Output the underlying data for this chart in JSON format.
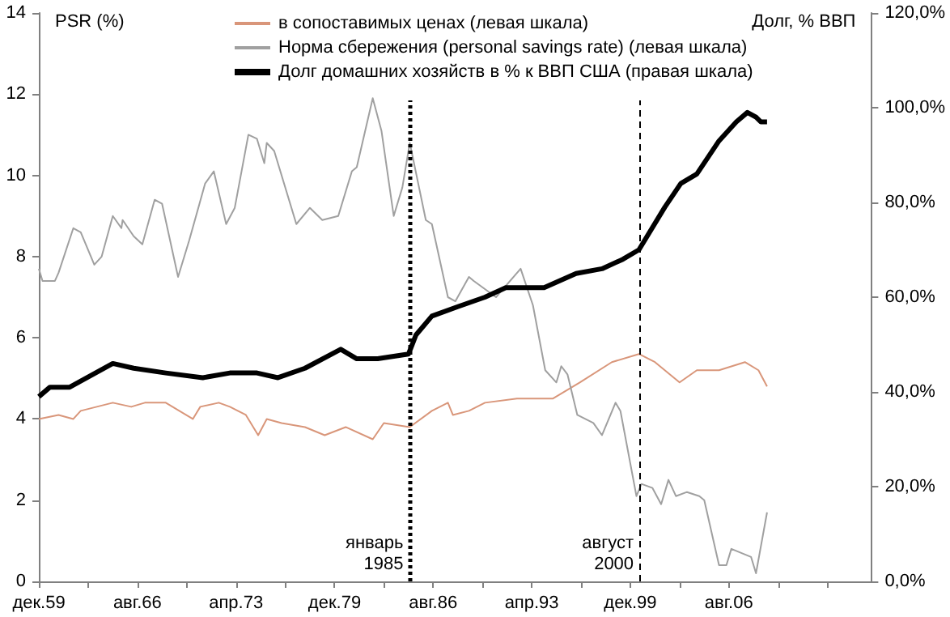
{
  "chart_data": {
    "type": "line",
    "ylabel": "PSR (%)",
    "y2label": "Долг, % ВВП",
    "xlim": [
      "1959-12",
      "2016-04"
    ],
    "xticks": [
      {
        "value": "1959-12",
        "label": "дек.59"
      },
      {
        "value": "1963-04",
        "label": null
      },
      {
        "value": "1966-08",
        "label": "авг.66"
      },
      {
        "value": "1969-12",
        "label": null
      },
      {
        "value": "1973-04",
        "label": "апр.73"
      },
      {
        "value": "1976-08",
        "label": null
      },
      {
        "value": "1979-12",
        "label": "дек.79"
      },
      {
        "value": "1983-04",
        "label": null
      },
      {
        "value": "1986-08",
        "label": "авг.86"
      },
      {
        "value": "1989-12",
        "label": null
      },
      {
        "value": "1993-04",
        "label": "апр.93"
      },
      {
        "value": "1996-08",
        "label": null
      },
      {
        "value": "1999-12",
        "label": "дек.99"
      },
      {
        "value": "2003-04",
        "label": null
      },
      {
        "value": "2006-08",
        "label": "авг.06"
      },
      {
        "value": "2009-12",
        "label": null
      },
      {
        "value": "2013-04",
        "label": null
      }
    ],
    "ylim": [
      0,
      14
    ],
    "yticks": [
      0,
      2,
      4,
      6,
      8,
      10,
      12,
      14
    ],
    "y2lim": [
      0,
      120
    ],
    "y2ticks": [
      {
        "value": 0,
        "label": "0,0%"
      },
      {
        "value": 20,
        "label": "20,0%"
      },
      {
        "value": 40,
        "label": "40,0%"
      },
      {
        "value": 60,
        "label": "60,0%"
      },
      {
        "value": 80,
        "label": "80,0%"
      },
      {
        "value": 100,
        "label": "100,0%"
      },
      {
        "value": 120,
        "label": "120,0%"
      }
    ],
    "grid": false,
    "legend": "top",
    "marker": "none",
    "ref_lines": [
      {
        "axis": "x",
        "value": "1985-01",
        "label": "январь 1985",
        "color": "#000000",
        "line_style": "dotted"
      },
      {
        "axis": "x",
        "value": "2000-08",
        "label": "август 2000",
        "color": "#000000",
        "line_style": "dashed"
      }
    ],
    "series": [
      {
        "name": "в сопоставимых ценах (левая шкала)",
        "color": "#d9967a",
        "x": [
          "1959-12",
          "1961-04",
          "1962-04",
          "1962-10",
          "1964-12",
          "1966-03",
          "1967-02",
          "1967-10",
          "1968-07",
          "1970-05",
          "1970-11",
          "1972-02",
          "1972-11",
          "1973-12",
          "1974-10",
          "1975-05",
          "1976-05",
          "1977-12",
          "1979-04",
          "1980-09",
          "1982-07",
          "1983-04",
          "1985-01",
          "1986-07",
          "1987-08",
          "1987-12",
          "1989-01",
          "1990-02",
          "1992-04",
          "1994-09",
          "1996-07",
          "1998-09",
          "2000-07",
          "2001-08",
          "2003-04",
          "2004-06",
          "2005-12",
          "2007-09",
          "2008-08",
          "2009-03"
        ],
        "values": [
          4.0,
          4.1,
          4.0,
          4.2,
          4.4,
          4.3,
          4.4,
          4.4,
          4.4,
          4.0,
          4.3,
          4.4,
          4.3,
          4.1,
          3.6,
          4.0,
          3.9,
          3.8,
          3.6,
          3.8,
          3.5,
          3.9,
          3.8,
          4.2,
          4.4,
          4.1,
          4.2,
          4.4,
          4.5,
          4.5,
          4.9,
          5.4,
          5.6,
          5.4,
          4.9,
          5.2,
          5.2,
          5.4,
          5.2,
          4.8
        ]
      },
      {
        "name": "Норма сбережения (personal savings rate) (левая шкала)",
        "color": "#a0a0a0",
        "x": [
          "1959-12",
          "1960-03",
          "1961-01",
          "1961-04",
          "1962-04",
          "1962-10",
          "1963-09",
          "1964-03",
          "1964-12",
          "1965-07",
          "1965-08",
          "1966-05",
          "1966-12",
          "1967-10",
          "1968-04",
          "1969-05",
          "1970-02",
          "1971-03",
          "1971-10",
          "1972-08",
          "1973-03",
          "1974-02",
          "1974-09",
          "1975-03",
          "1975-05",
          "1975-11",
          "1977-05",
          "1978-04",
          "1979-02",
          "1980-03",
          "1981-02",
          "1981-06",
          "1982-07",
          "1983-02",
          "1983-12",
          "1984-07",
          "1985-01",
          "1986-02",
          "1986-07",
          "1987-08",
          "1988-02",
          "1989-01",
          "1989-05",
          "1990-11",
          "1992-07",
          "1993-05",
          "1994-03",
          "1994-12",
          "1995-04",
          "1995-09",
          "1996-05",
          "1997-06",
          "1998-01",
          "1998-12",
          "1999-04",
          "2000-05",
          "2000-09",
          "2001-06",
          "2002-01",
          "2002-07",
          "2003-01",
          "2003-10",
          "2004-08",
          "2004-12",
          "2005-12",
          "2006-06",
          "2006-10",
          "2008-02",
          "2008-06",
          "2009-03"
        ],
        "values": [
          7.7,
          7.4,
          7.4,
          7.6,
          8.7,
          8.6,
          7.8,
          8.0,
          9.0,
          8.7,
          8.9,
          8.5,
          8.3,
          9.4,
          9.3,
          7.5,
          8.4,
          9.8,
          10.1,
          8.8,
          9.2,
          11.0,
          10.9,
          10.3,
          10.8,
          10.6,
          8.8,
          9.2,
          8.9,
          9.0,
          10.1,
          10.2,
          11.9,
          11.1,
          9.0,
          9.7,
          10.8,
          8.9,
          8.8,
          7.0,
          6.9,
          7.5,
          7.4,
          7.0,
          7.7,
          6.8,
          5.2,
          4.9,
          5.3,
          5.1,
          4.1,
          3.9,
          3.6,
          4.4,
          4.2,
          2.1,
          2.4,
          2.3,
          1.9,
          2.5,
          2.1,
          2.2,
          2.1,
          2.0,
          0.4,
          0.4,
          0.8,
          0.6,
          0.2,
          1.7
        ]
      },
      {
        "name": "Долг домашних хозяйств в % к ВВП США (правая шкала)",
        "color": "#000000",
        "axis": "y2",
        "x": [
          "1959-12",
          "1960-09",
          "1962-01",
          "1964-12",
          "1966-05",
          "1968-07",
          "1971-01",
          "1972-11",
          "1974-09",
          "1976-02",
          "1977-12",
          "1980-05",
          "1981-06",
          "1982-11",
          "1984-12",
          "1985-06",
          "1986-07",
          "1988-04",
          "1990-02",
          "1991-07",
          "1994-02",
          "1996-04",
          "1998-01",
          "1999-06",
          "2000-07",
          "2002-04",
          "2003-05",
          "2004-06",
          "2005-12",
          "2007-02",
          "2007-11",
          "2008-06",
          "2008-10",
          "2009-03"
        ],
        "values": [
          39,
          41,
          41,
          46,
          45,
          44,
          43,
          44,
          44,
          43,
          45,
          49,
          47,
          47,
          48,
          52,
          56,
          58,
          60,
          62,
          62,
          65,
          66,
          68,
          70,
          79,
          84,
          86,
          93,
          97,
          99,
          98,
          97,
          97
        ]
      }
    ]
  }
}
